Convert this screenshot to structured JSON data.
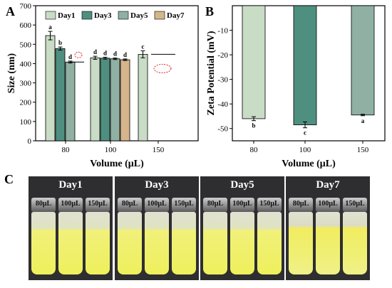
{
  "panel_letters": {
    "a": "A",
    "b": "B",
    "c": "C"
  },
  "chart_data": [
    {
      "type": "bar",
      "categories": [
        "80",
        "100",
        "150"
      ],
      "xlabel": "Volume (μL)",
      "ylabel": "Size (nm)",
      "ylim": [
        0,
        700
      ],
      "yticks": [
        0,
        100,
        200,
        300,
        400,
        500,
        600,
        700
      ],
      "legend_position": "top",
      "series": [
        {
          "name": "Day1",
          "color": "#c9dcc5",
          "values": [
            545,
            430,
            448
          ],
          "errors": [
            22,
            8,
            18
          ],
          "letters": [
            "a",
            "d",
            "c"
          ]
        },
        {
          "name": "Day3",
          "color": "#4f8f80",
          "values": [
            478,
            428,
            null
          ],
          "errors": [
            8,
            5,
            null
          ],
          "letters": [
            "b",
            "d",
            ""
          ]
        },
        {
          "name": "Day5",
          "color": "#8fb0a3",
          "values": [
            408,
            425,
            null
          ],
          "errors": [
            5,
            4,
            null
          ],
          "letters": [
            "d",
            "d",
            ""
          ]
        },
        {
          "name": "Day7",
          "color": "#d6b58a",
          "values": [
            null,
            420,
            null
          ],
          "errors": [
            null,
            4,
            null
          ],
          "letters": [
            "",
            "d",
            ""
          ]
        }
      ]
    },
    {
      "type": "bar",
      "categories": [
        "80",
        "100",
        "150"
      ],
      "xlabel": "Volume (μL)",
      "ylabel": "Zeta Potential (mV)",
      "ylim": [
        -55,
        0
      ],
      "yticks": [
        -50,
        -40,
        -30,
        -20,
        -10
      ],
      "values": [
        -46,
        -48.5,
        -44.5
      ],
      "errors": [
        0.8,
        1.2,
        0.3
      ],
      "letters": [
        "b",
        "c",
        "a"
      ],
      "colors": [
        "#c9dcc5",
        "#4f8f80",
        "#8fb0a3"
      ]
    }
  ],
  "photo_panel": {
    "days": [
      {
        "title": "Day1",
        "volumes": [
          "80μL",
          "100μL",
          "150μL"
        ]
      },
      {
        "title": "Day3",
        "volumes": [
          "80μL",
          "100μL",
          "150μL"
        ]
      },
      {
        "title": "Day5",
        "volumes": [
          "80μL",
          "100μL",
          "150μL"
        ]
      },
      {
        "title": "Day7",
        "volumes": [
          "80μL",
          "100μL",
          "150μL"
        ]
      }
    ]
  }
}
